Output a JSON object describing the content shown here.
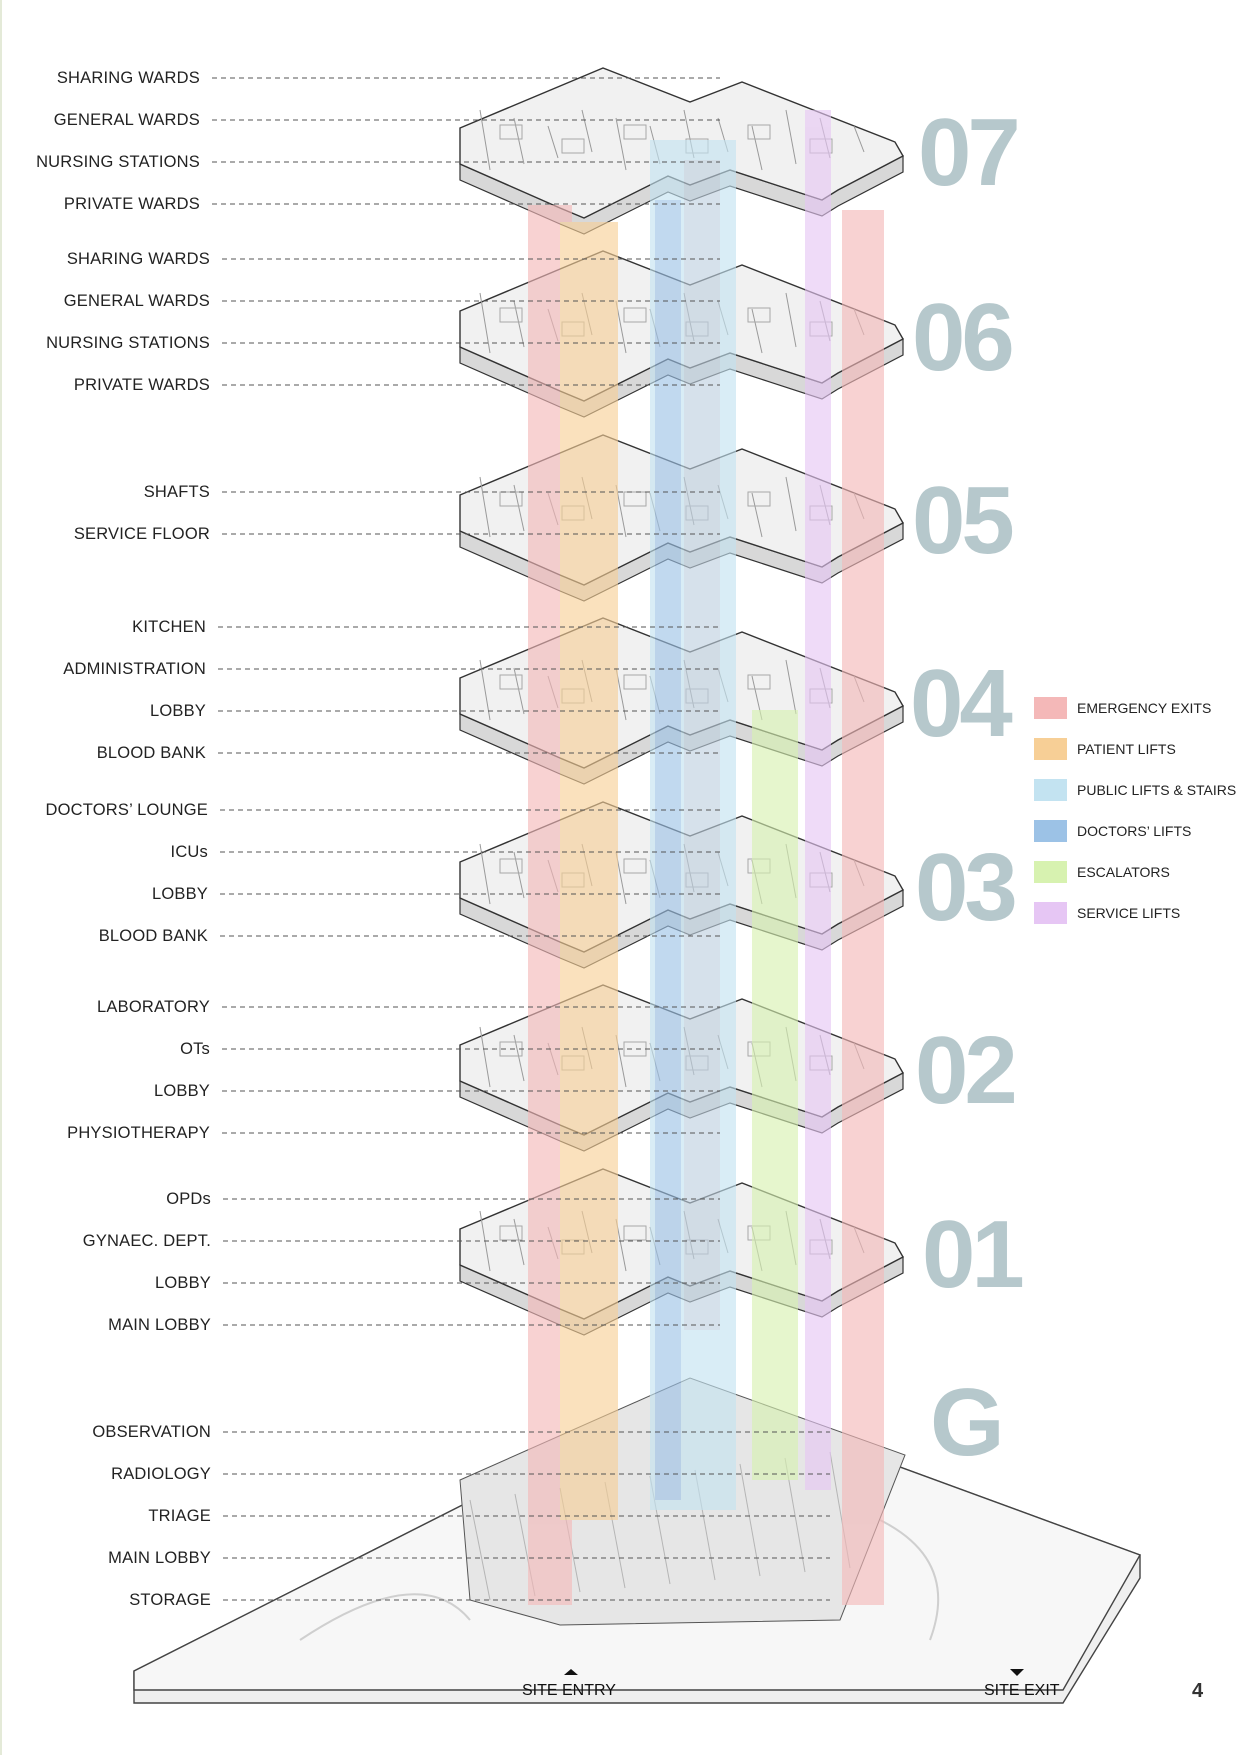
{
  "floors": [
    {
      "number": "07",
      "labels": [
        "SHARING WARDS",
        "GENERAL WARDS",
        "NURSING STATIONS",
        "PRIVATE WARDS"
      ]
    },
    {
      "number": "06",
      "labels": [
        "SHARING WARDS",
        "GENERAL WARDS",
        "NURSING STATIONS",
        "PRIVATE WARDS"
      ]
    },
    {
      "number": "05",
      "labels": [
        "SHAFTS",
        "SERVICE FLOOR"
      ]
    },
    {
      "number": "04",
      "labels": [
        "KITCHEN",
        "ADMINISTRATION",
        "LOBBY",
        "BLOOD BANK"
      ]
    },
    {
      "number": "03",
      "labels": [
        "DOCTORS’ LOUNGE",
        "ICUs",
        "LOBBY",
        "BLOOD BANK"
      ]
    },
    {
      "number": "02",
      "labels": [
        "LABORATORY",
        "OTs",
        "LOBBY",
        "PHYSIOTHERAPY"
      ]
    },
    {
      "number": "01",
      "labels": [
        "OPDs",
        "GYNAEC. DEPT.",
        "LOBBY",
        "MAIN LOBBY"
      ]
    },
    {
      "number": "G",
      "labels": [
        "OBSERVATION",
        "RADIOLOGY",
        "TRIAGE",
        "MAIN LOBBY",
        "STORAGE"
      ]
    }
  ],
  "legend": [
    {
      "label": "EMERGENCY EXITS",
      "color": "#f4b8b8"
    },
    {
      "label": "PATIENT LIFTS",
      "color": "#f7cf96"
    },
    {
      "label": "PUBLIC LIFTS & STAIRS",
      "color": "#c3e3f1"
    },
    {
      "label": "DOCTORS’ LIFTS",
      "color": "#9cc2e6"
    },
    {
      "label": "ESCALATORS",
      "color": "#d7f2b0"
    },
    {
      "label": "SERVICE LIFTS",
      "color": "#e6c6f4"
    }
  ],
  "site": {
    "entry": "SITE ENTRY",
    "exit": "SITE EXIT"
  },
  "page_number": "4"
}
